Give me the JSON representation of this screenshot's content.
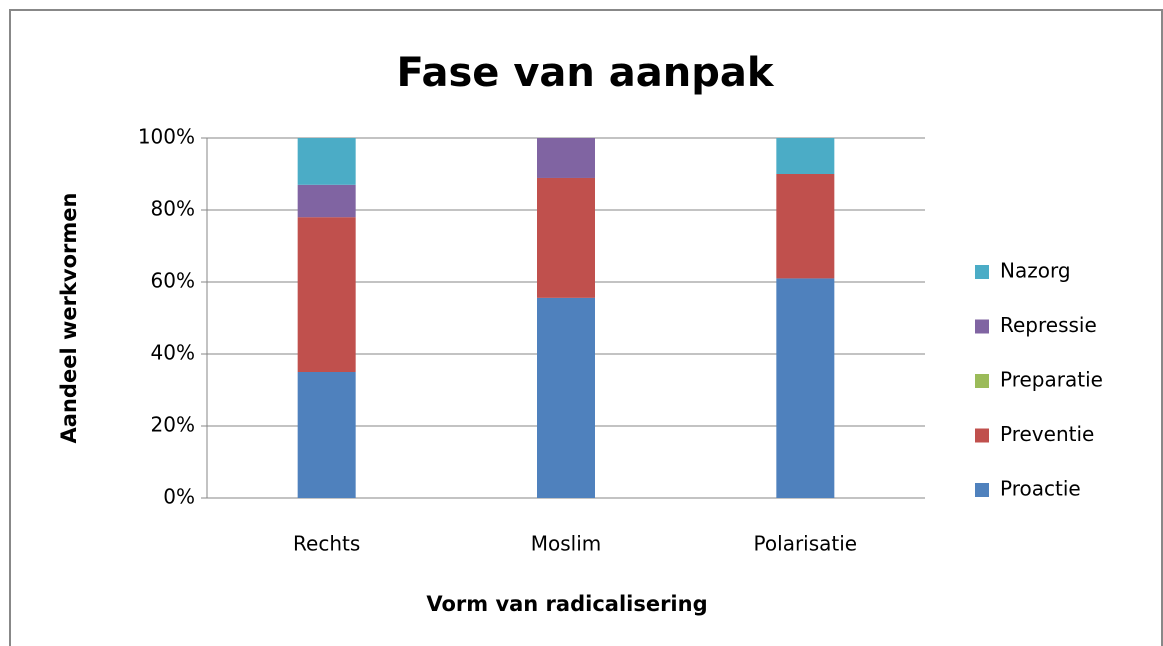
{
  "chart_data": {
    "type": "stacked_bar",
    "title": "Fase van aanpak",
    "xlabel": "Vorm van radicalisering",
    "ylabel": "Aandeel werkvormen",
    "categories": [
      "Rechts",
      "Moslim",
      "Polarisatie"
    ],
    "series": [
      {
        "name": "Proactie",
        "color": "#4f81bd",
        "values": [
          35,
          55.6,
          61
        ]
      },
      {
        "name": "Preventie",
        "color": "#c0504d",
        "values": [
          43,
          33.3,
          29
        ]
      },
      {
        "name": "Preparatie",
        "color": "#9bbb59",
        "values": [
          0,
          0,
          0
        ]
      },
      {
        "name": "Repressie",
        "color": "#8064a2",
        "values": [
          9,
          11.1,
          0
        ]
      },
      {
        "name": "Nazorg",
        "color": "#4bacc6",
        "values": [
          13,
          0,
          10
        ]
      }
    ],
    "ylim": [
      0,
      100
    ],
    "yticks": [
      {
        "value": 0,
        "label": "0%"
      },
      {
        "value": 20,
        "label": "20%"
      },
      {
        "value": 40,
        "label": "40%"
      },
      {
        "value": 60,
        "label": "60%"
      },
      {
        "value": 80,
        "label": "80%"
      },
      {
        "value": 100,
        "label": "100%"
      }
    ],
    "grid": true,
    "legend": "right"
  }
}
